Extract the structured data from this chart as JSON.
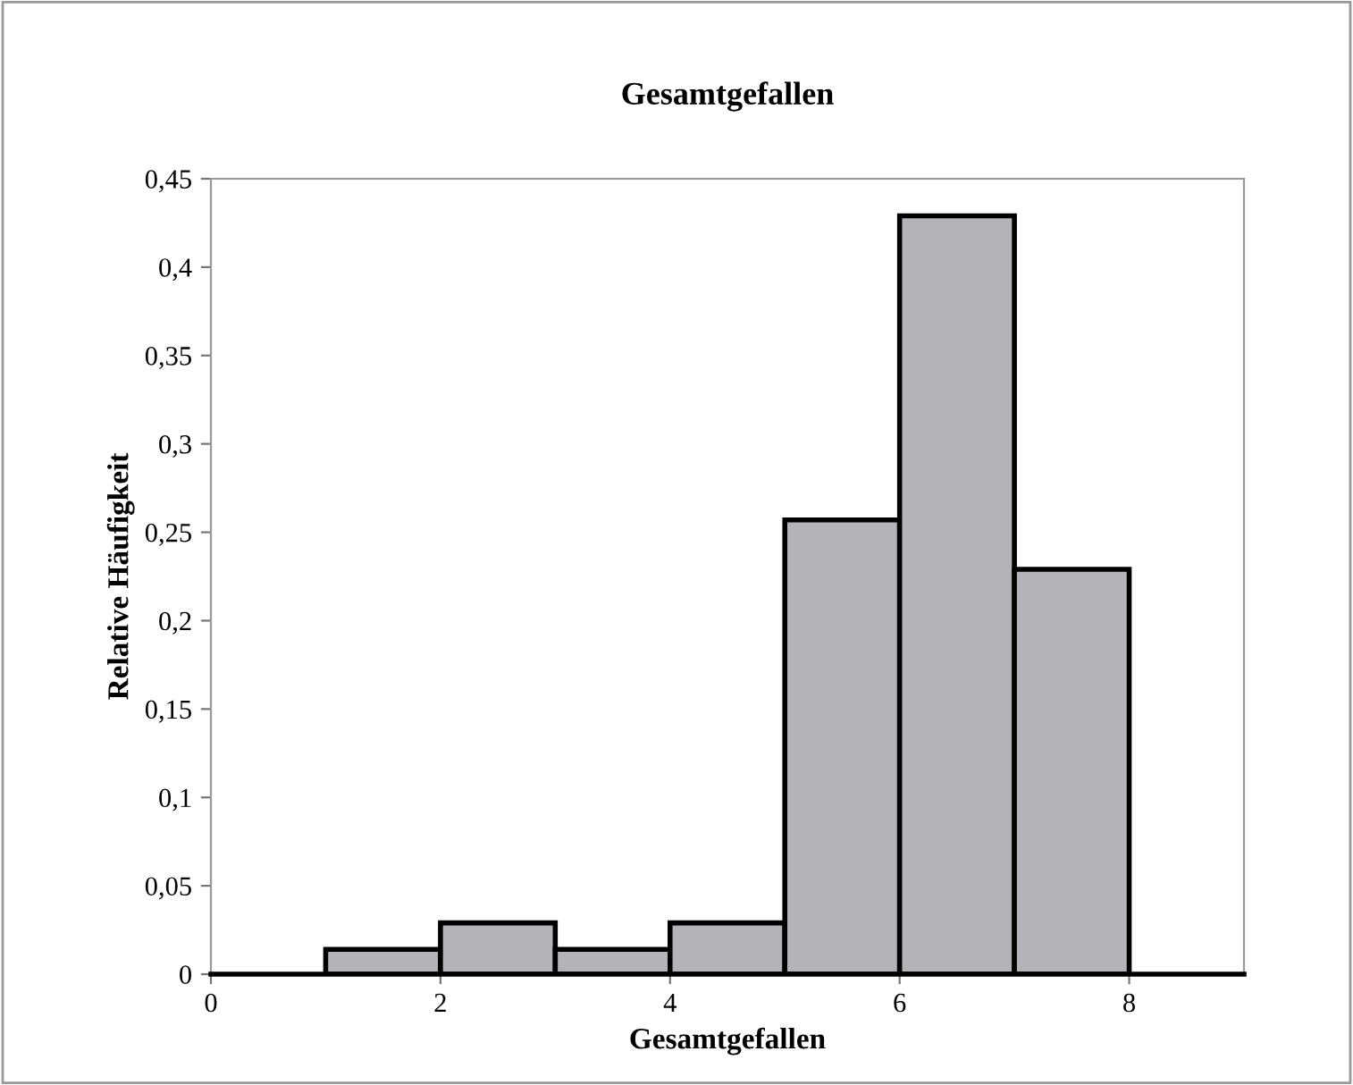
{
  "chart_data": {
    "type": "histogram",
    "title": "Gesamtgefallen",
    "xlabel": "Gesamtgefallen",
    "ylabel": "Relative Häufigkeit",
    "bins": [
      1,
      2,
      3,
      4,
      5,
      6,
      7,
      8
    ],
    "values": [
      0.014,
      0.029,
      0.014,
      0.029,
      0.257,
      0.429,
      0.229
    ],
    "color": "#b3b3b8",
    "xlim": [
      0,
      9
    ],
    "xticks": [
      0,
      2,
      4,
      6,
      8
    ],
    "ylim": [
      0,
      0.45
    ],
    "yticks": [
      0,
      {
        "value": 0.05,
        "label": "0,05"
      },
      {
        "value": 0.1,
        "label": "0,1"
      },
      {
        "value": 0.15,
        "label": "0,15"
      },
      {
        "value": 0.2,
        "label": "0,2"
      },
      {
        "value": 0.25,
        "label": "0,25"
      },
      {
        "value": 0.3,
        "label": "0,3"
      },
      {
        "value": 0.35,
        "label": "0,35"
      },
      {
        "value": 0.4,
        "label": "0,4"
      },
      {
        "value": 0.45,
        "label": "0,45"
      }
    ],
    "grid": false,
    "legend": false
  }
}
